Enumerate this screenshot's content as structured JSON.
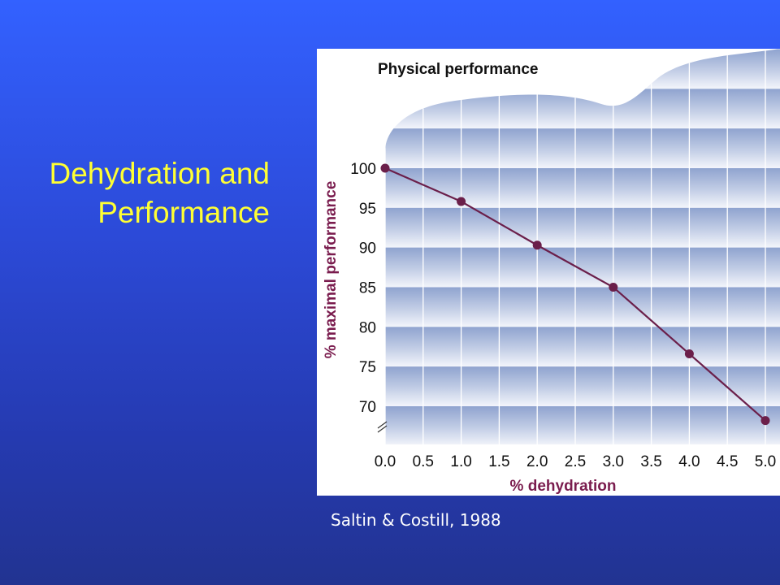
{
  "slide": {
    "title_line1": "Dehydration and",
    "title_line2": "Performance",
    "citation": "Saltin & Costill, 1988"
  },
  "colors": {
    "background_top": "#3361ff",
    "background_bottom": "#223391",
    "title": "#ffff33",
    "series_line": "#6b1f4a",
    "axis_label": "#7a1c4e",
    "band_dark": "#8fa3cf"
  },
  "chart_data": {
    "type": "line",
    "title": "Physical performance",
    "xlabel": "% dehydration",
    "ylabel": "% maximal performance",
    "x_ticks": [
      "0.0",
      "0.5",
      "1.0",
      "1.5",
      "2.0",
      "2.5",
      "3.0",
      "3.5",
      "4.0",
      "4.5",
      "5.0"
    ],
    "y_ticks": [
      "70",
      "75",
      "80",
      "85",
      "90",
      "95",
      "100"
    ],
    "xlim": [
      0,
      5
    ],
    "ylim": [
      70,
      100
    ],
    "grid": true,
    "axis_break": "y",
    "series": [
      {
        "x": [
          0,
          1,
          2,
          3,
          4,
          5
        ],
        "y": [
          100,
          95.8,
          90.3,
          85,
          76.6,
          68.2
        ]
      }
    ]
  }
}
